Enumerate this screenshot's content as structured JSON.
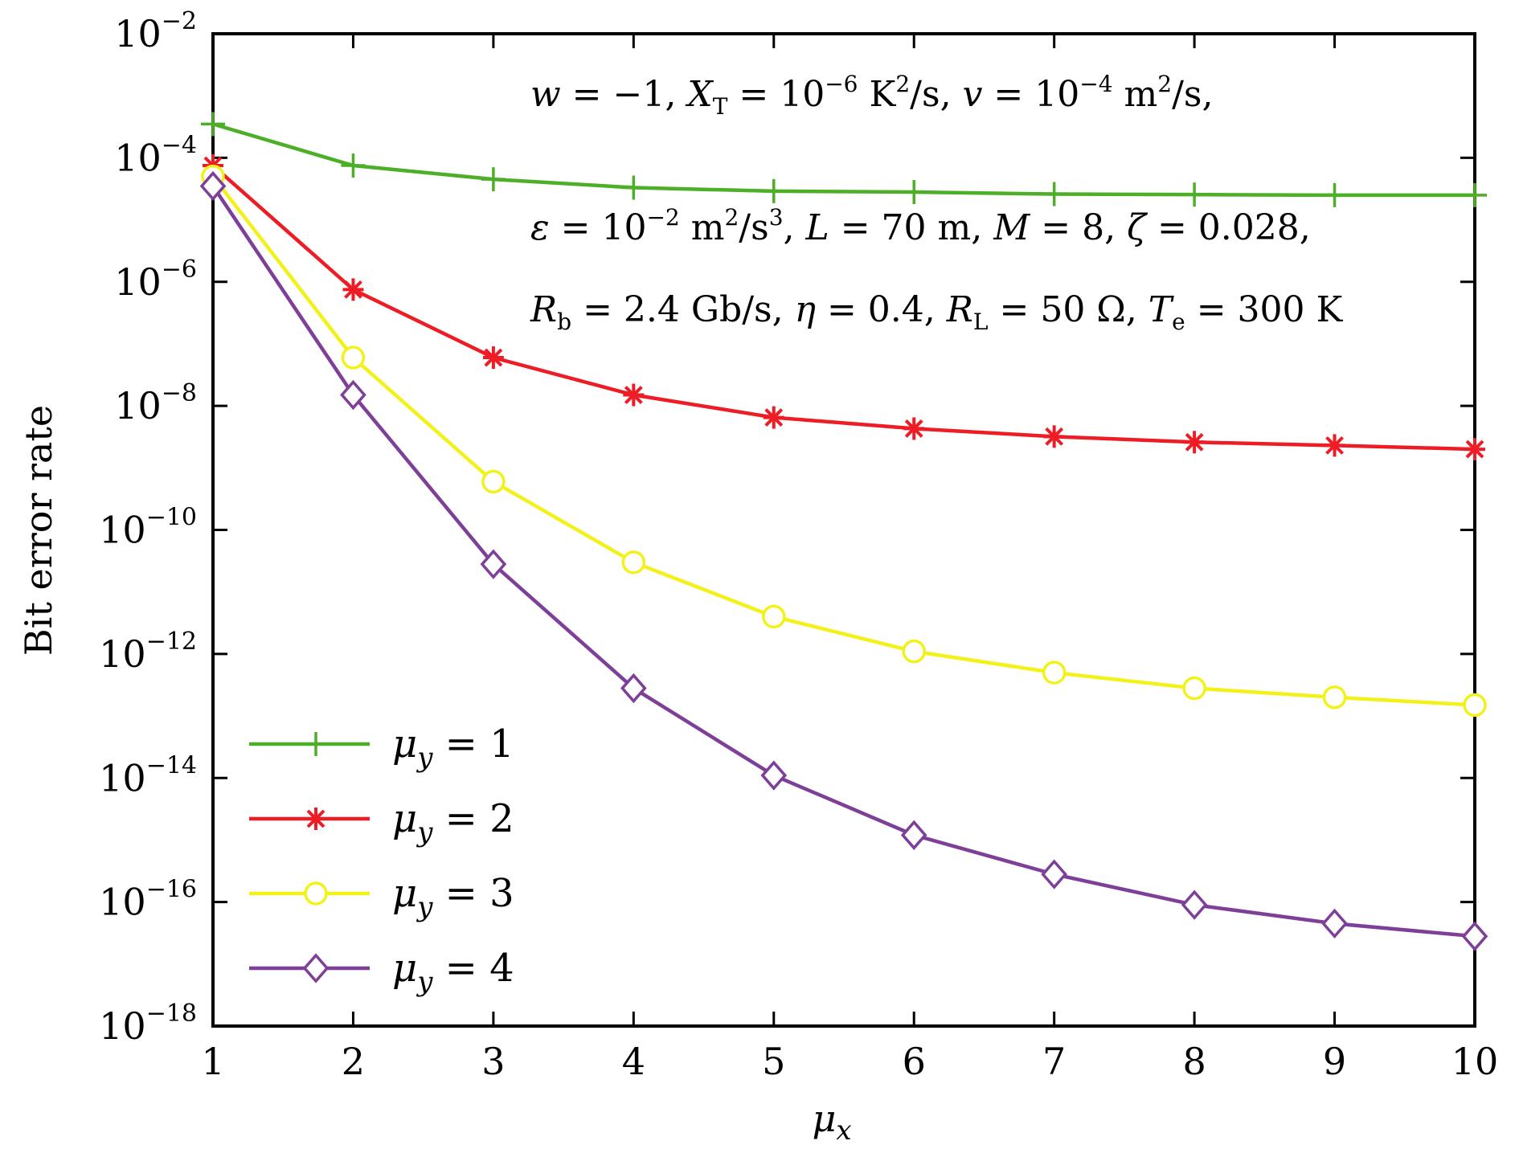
{
  "chart_data": {
    "type": "line",
    "xlabel": "μ_x",
    "ylabel": "Bit error rate",
    "x": [
      1,
      2,
      3,
      4,
      5,
      6,
      7,
      8,
      9,
      10
    ],
    "xlim": [
      1,
      10
    ],
    "ylim": [
      1e-18,
      0.01
    ],
    "yscale": "log",
    "x_ticks": [
      "1",
      "2",
      "3",
      "4",
      "5",
      "6",
      "7",
      "8",
      "9",
      "10"
    ],
    "y_ticks": [
      {
        "base": "10",
        "exp": "−2",
        "value": 0.01
      },
      {
        "base": "10",
        "exp": "−4",
        "value": 0.0001
      },
      {
        "base": "10",
        "exp": "−6",
        "value": 1e-06
      },
      {
        "base": "10",
        "exp": "−8",
        "value": 1e-08
      },
      {
        "base": "10",
        "exp": "−10",
        "value": 1e-10
      },
      {
        "base": "10",
        "exp": "−12",
        "value": 1e-12
      },
      {
        "base": "10",
        "exp": "−14",
        "value": 1e-14
      },
      {
        "base": "10",
        "exp": "−16",
        "value": 1e-16
      },
      {
        "base": "10",
        "exp": "−18",
        "value": 1e-18
      }
    ],
    "grid": false,
    "legend_position": "bottom-left",
    "annotations": [
      "w = −1, X_T = 10^−6 K²/s, v = 10^−4 m²/s,",
      "ε = 10^−2 m²/s³, L = 70 m, M = 8, ζ = 0.028,",
      "R_b = 2.4 Gb/s,  η = 0.4,  R_L = 50 Ω, T_e = 300 K"
    ],
    "series": [
      {
        "name": "μ_y = 1",
        "color": "#4daf27",
        "marker": "plus",
        "values": [
          0.00035,
          7.5e-05,
          4.5e-05,
          3.3e-05,
          2.9e-05,
          2.8e-05,
          2.6e-05,
          2.55e-05,
          2.5e-05,
          2.5e-05
        ]
      },
      {
        "name": "μ_y = 2",
        "color": "#ee1c25",
        "marker": "star",
        "values": [
          7.5e-05,
          7.5e-07,
          6e-08,
          1.5e-08,
          6.5e-09,
          4.3e-09,
          3.2e-09,
          2.6e-09,
          2.3e-09,
          2e-09
        ]
      },
      {
        "name": "μ_y = 3",
        "color": "#f2f21a",
        "marker": "circle",
        "values": [
          5e-05,
          6e-08,
          6e-10,
          3e-11,
          4e-12,
          1.1e-12,
          5e-13,
          2.8e-13,
          2e-13,
          1.5e-13
        ]
      },
      {
        "name": "μ_y = 4",
        "color": "#7e3f98",
        "marker": "diamond",
        "values": [
          3.5e-05,
          1.5e-08,
          2.8e-11,
          2.8e-13,
          1.1e-14,
          1.2e-15,
          2.8e-16,
          9e-17,
          4.5e-17,
          2.8e-17
        ]
      }
    ]
  }
}
